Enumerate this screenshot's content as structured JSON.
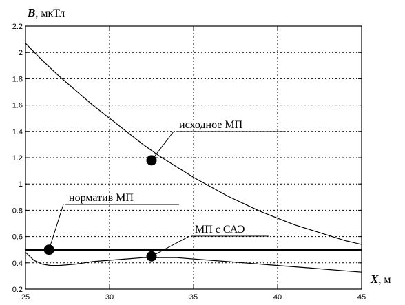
{
  "chart_data": {
    "type": "line",
    "ylabel_var": "B",
    "ylabel_unit": ", мкТл",
    "xlabel_var": "X",
    "xlabel_unit": ", м",
    "xlim": [
      25,
      45
    ],
    "ylim": [
      0.2,
      2.2
    ],
    "xticks": [
      25,
      30,
      35,
      40,
      45
    ],
    "yticks": [
      0.2,
      0.4,
      0.6,
      0.8,
      1,
      1.2,
      1.4,
      1.6,
      1.8,
      2,
      2.2
    ],
    "grid": true,
    "series": [
      {
        "label": "исходное МП",
        "style": "thin",
        "x": [
          25,
          26,
          27,
          28,
          29,
          30,
          31,
          32,
          33,
          34,
          35,
          36,
          37,
          38,
          39,
          40,
          41,
          42,
          43,
          44,
          45
        ],
        "y": [
          2.07,
          1.94,
          1.82,
          1.71,
          1.6,
          1.5,
          1.4,
          1.3,
          1.21,
          1.13,
          1.05,
          0.98,
          0.91,
          0.85,
          0.79,
          0.74,
          0.69,
          0.65,
          0.61,
          0.57,
          0.54
        ]
      },
      {
        "label": "норматив МП",
        "style": "thick",
        "x": [
          25,
          45
        ],
        "y": [
          0.5,
          0.5
        ]
      },
      {
        "label": "МП с САЭ",
        "style": "thin",
        "x": [
          25,
          25.5,
          26,
          26.5,
          27,
          28,
          29,
          30,
          31,
          32,
          33,
          34,
          35,
          36,
          37,
          38,
          39,
          40,
          41,
          42,
          43,
          44,
          45
        ],
        "y": [
          0.48,
          0.42,
          0.39,
          0.38,
          0.38,
          0.39,
          0.41,
          0.42,
          0.43,
          0.44,
          0.44,
          0.44,
          0.43,
          0.42,
          0.41,
          0.4,
          0.39,
          0.38,
          0.37,
          0.36,
          0.35,
          0.34,
          0.33
        ]
      }
    ],
    "annotations": [
      {
        "text": "исходное МП",
        "point": [
          32.5,
          1.18
        ]
      },
      {
        "text": "норматив МП",
        "point": [
          26.4,
          0.5
        ]
      },
      {
        "text": "МП с САЭ",
        "point": [
          32.5,
          0.45
        ]
      }
    ]
  }
}
